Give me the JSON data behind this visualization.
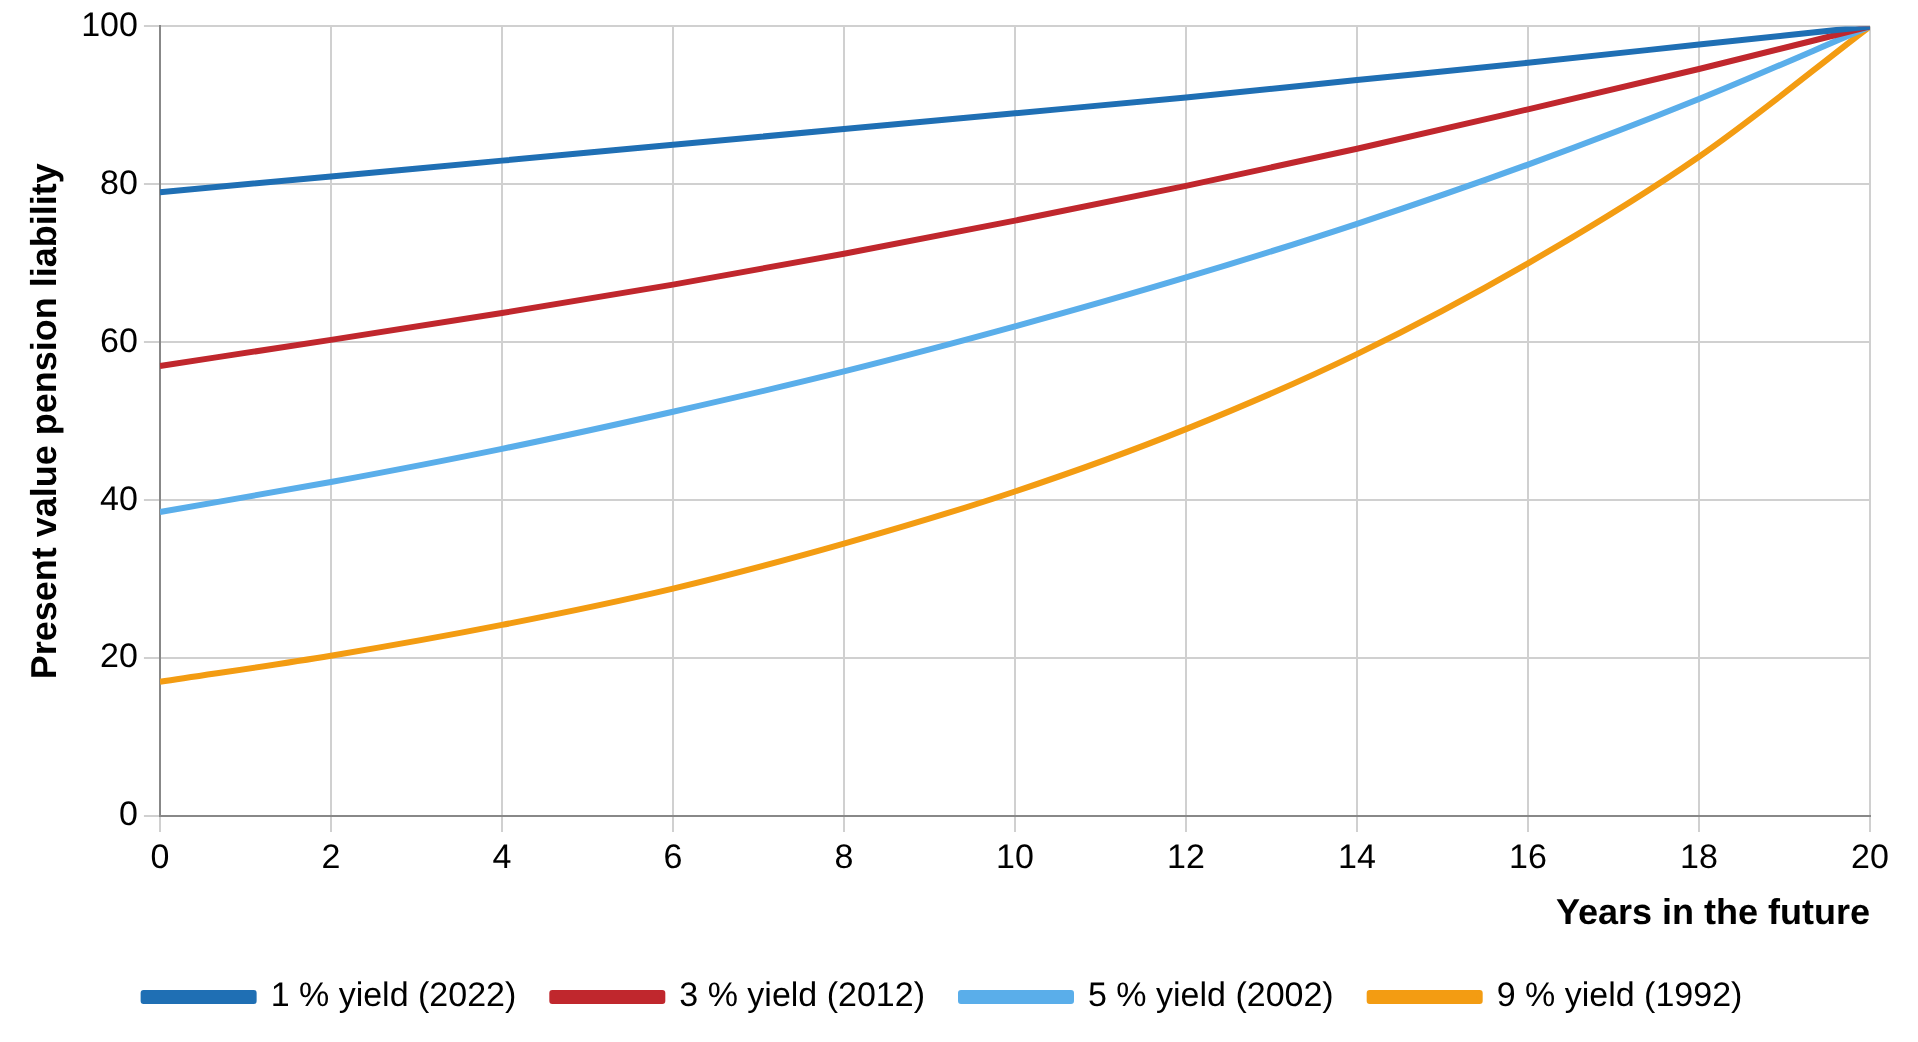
{
  "chart_data": {
    "type": "line",
    "xlabel": "Years in the future",
    "ylabel": "Present value pension liability",
    "x": [
      0,
      2,
      4,
      6,
      8,
      10,
      12,
      14,
      16,
      18,
      20
    ],
    "series": [
      {
        "name": "1 % yield (2022)",
        "color": "#1f6fb4",
        "values": [
          79,
          81,
          83,
          85,
          87,
          89,
          91,
          93.2,
          95.4,
          97.7,
          100
        ]
      },
      {
        "name": "3 % yield (2012)",
        "color": "#c0272d",
        "values": [
          57,
          60.3,
          63.7,
          67.3,
          71.2,
          75.4,
          79.8,
          84.5,
          89.5,
          94.6,
          100
        ]
      },
      {
        "name": "5 % yield (2002)",
        "color": "#5aaeea",
        "values": [
          38.5,
          42.3,
          46.5,
          51.2,
          56.3,
          62,
          68.2,
          75,
          82.5,
          90.8,
          100
        ]
      },
      {
        "name": "9 % yield (1992)",
        "color": "#f39c12",
        "values": [
          17,
          20.3,
          24.2,
          28.8,
          34.5,
          41.1,
          49,
          58.5,
          70,
          83.5,
          100
        ]
      }
    ],
    "xlim": [
      0,
      20
    ],
    "xticks": [
      0,
      2,
      4,
      6,
      8,
      10,
      12,
      14,
      16,
      18,
      20
    ],
    "ylim": [
      0,
      100
    ],
    "yticks": [
      0,
      20,
      40,
      60,
      80,
      100
    ],
    "grid": true,
    "legend": "bottom",
    "marker": "none",
    "line_style": "solid"
  }
}
